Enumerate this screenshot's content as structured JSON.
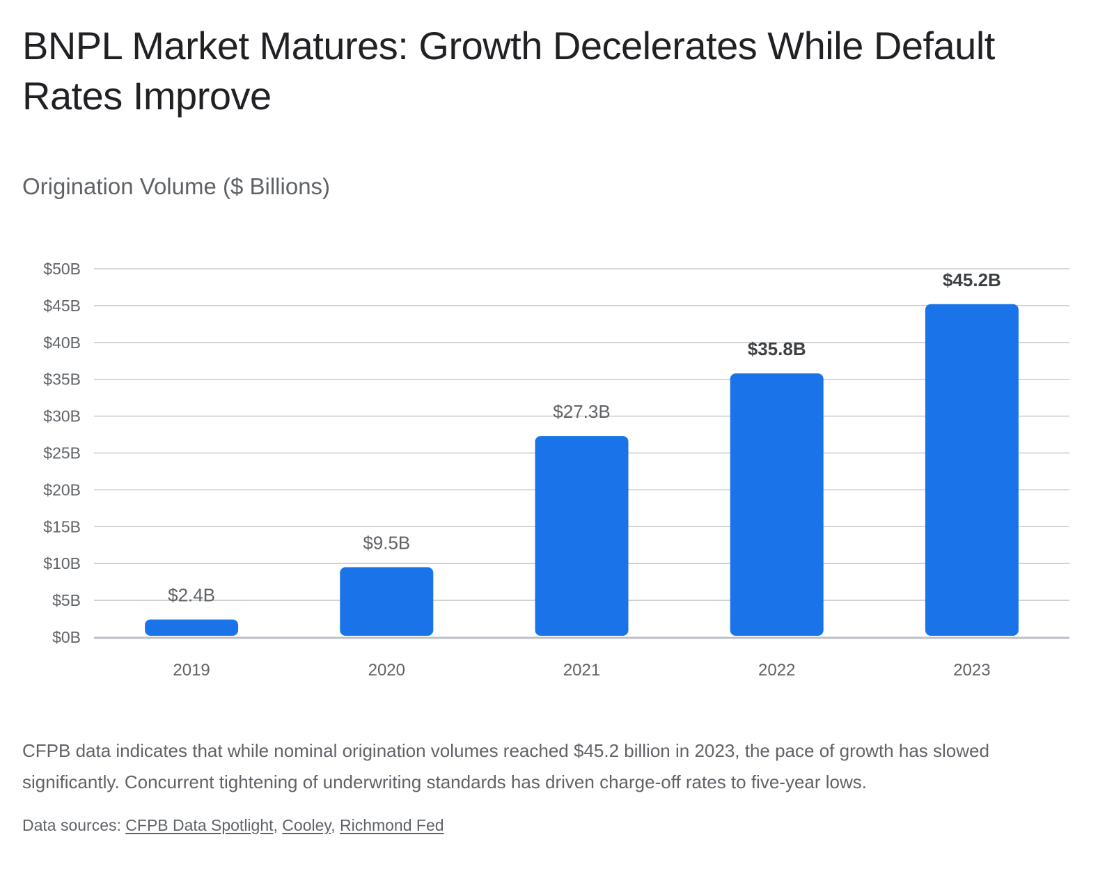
{
  "page": {
    "title": "BNPL Market Matures: Growth Decelerates While Default Rates Improve",
    "description": "CFPB data indicates that while nominal origination volumes reached $45.2 billion in 2023, the pace of growth has slowed significantly. Concurrent tightening of underwriting standards has driven charge-off rates to five-year lows.",
    "sources": {
      "label": "Data sources:",
      "links": [
        "CFPB Data Spotlight",
        "Cooley",
        "Richmond Fed"
      ],
      "separator": ","
    }
  },
  "colors": {
    "bar": "#1a73e8",
    "grid": "#c8cacd",
    "baseline": "#bdc1c6",
    "label_emphasis": "#3c4043",
    "label_normal": "#5f6368"
  },
  "chart_data": {
    "type": "bar",
    "title": "",
    "subtitle": "Origination Volume ($ Billions)",
    "xlabel": "",
    "ylabel": "",
    "categories": [
      "2019",
      "2020",
      "2021",
      "2022",
      "2023"
    ],
    "values": [
      2.4,
      9.5,
      27.3,
      35.8,
      45.2
    ],
    "data_labels": [
      "$2.4B",
      "$9.5B",
      "$27.3B",
      "$35.8B",
      "$45.2B"
    ],
    "bold_labels": [
      false,
      false,
      false,
      true,
      true
    ],
    "ylim": [
      0,
      50
    ],
    "yticks": [
      0,
      5,
      10,
      15,
      20,
      25,
      30,
      35,
      40,
      45,
      50
    ],
    "ytick_labels": [
      "$0B",
      "$5B",
      "$10B",
      "$15B",
      "$20B",
      "$25B",
      "$30B",
      "$35B",
      "$40B",
      "$45B",
      "$50B"
    ],
    "grid": true,
    "legend": "none"
  }
}
